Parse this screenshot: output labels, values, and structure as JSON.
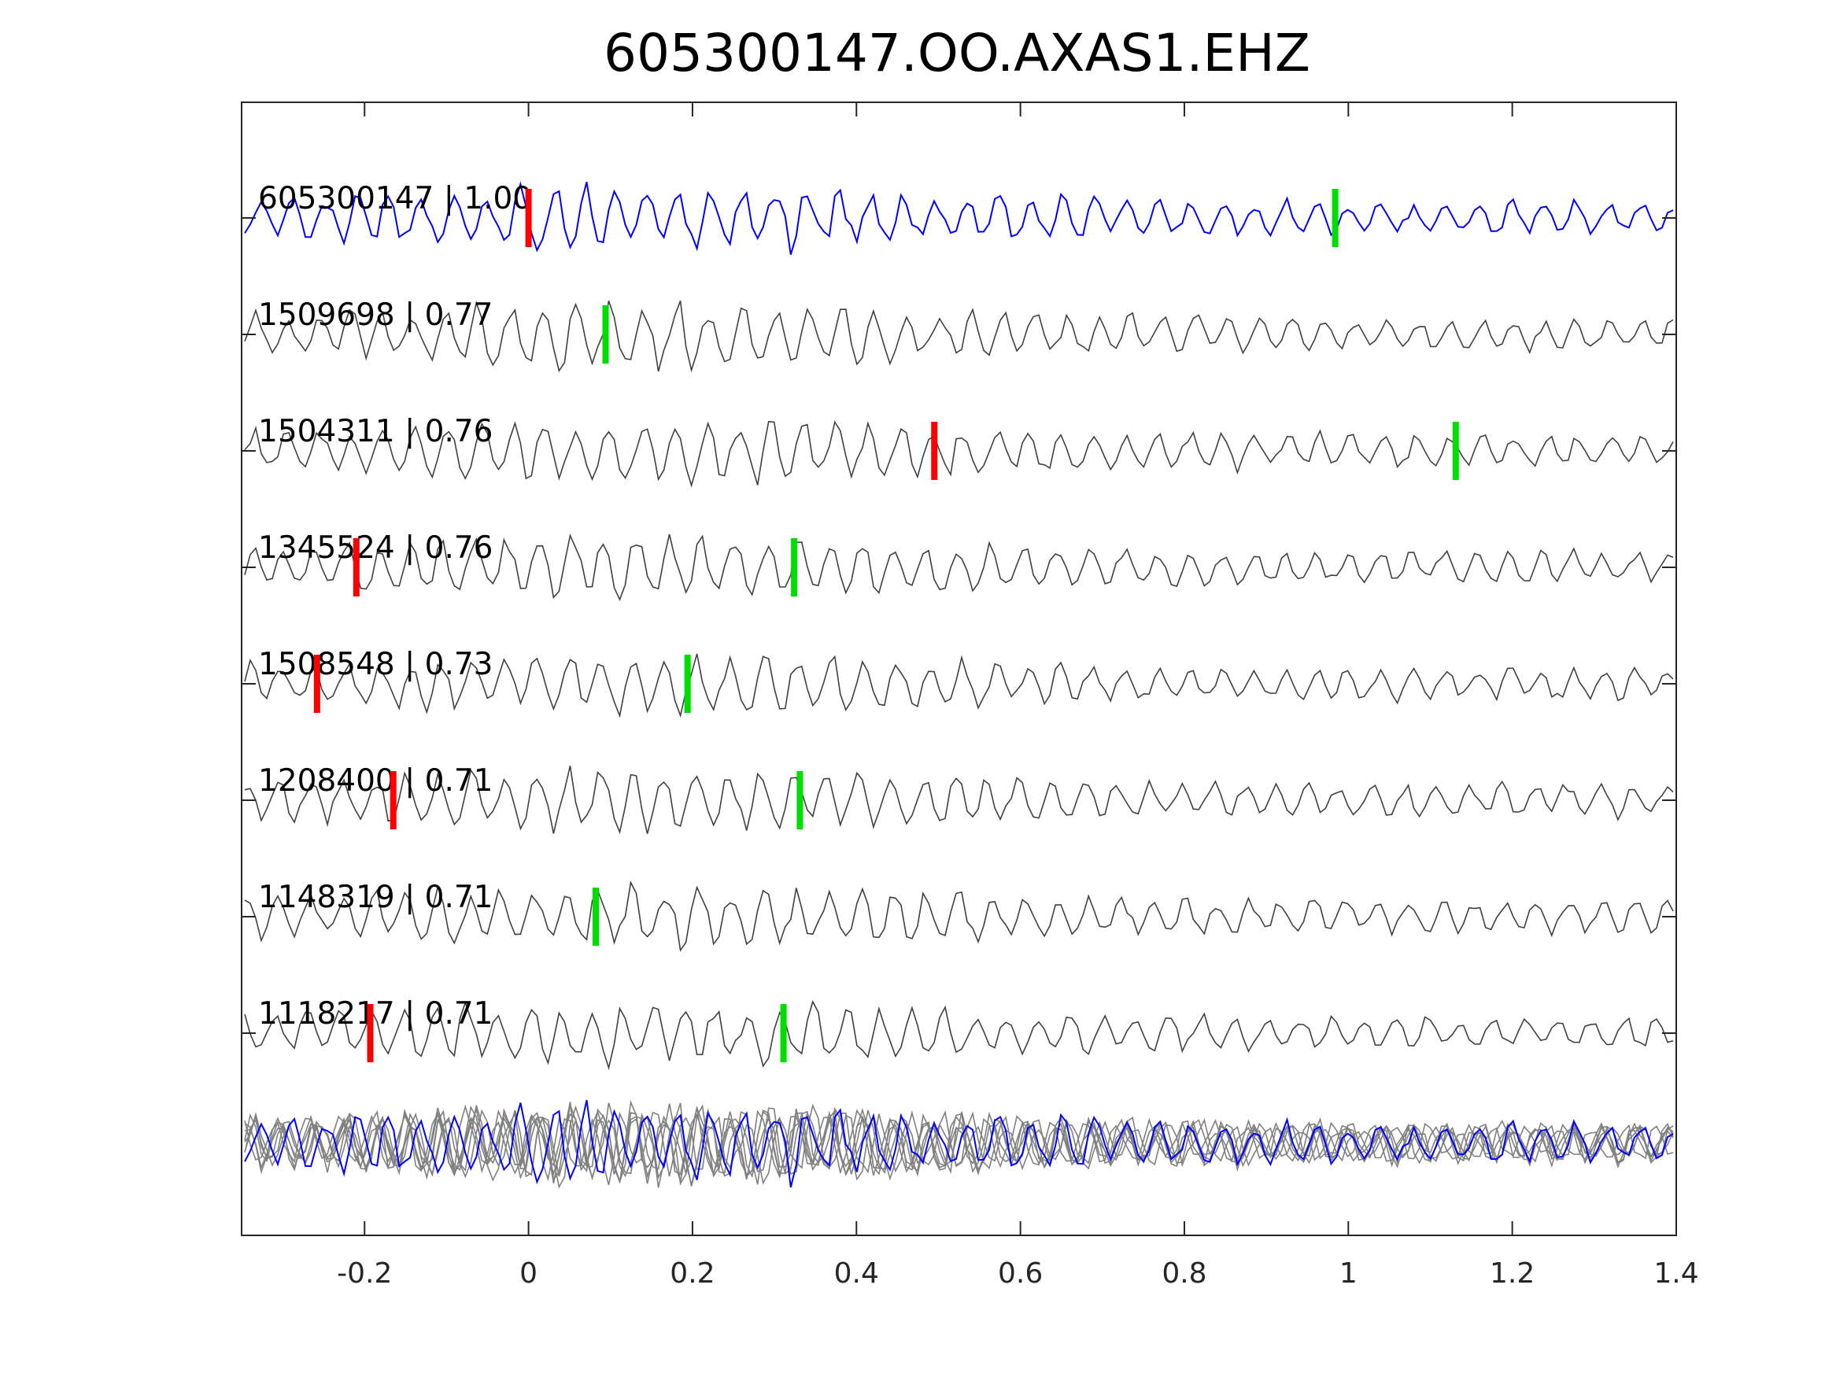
{
  "chart_data": {
    "type": "line",
    "title": "605300147.OO.AXAS1.EHZ",
    "xlabel": "",
    "ylabel": "",
    "xlim": [
      -0.35,
      1.4
    ],
    "xticks": [
      -0.2,
      0,
      0.2,
      0.4,
      0.6,
      0.8,
      1,
      1.2,
      1.4
    ],
    "xtick_labels": [
      "-0.2",
      "0",
      "0.2",
      "0.4",
      "0.6",
      "0.8",
      "1",
      "1.2",
      "1.4"
    ],
    "grid": false,
    "colors": {
      "template": "#0000ff",
      "neighbor": "#404040",
      "stack": "#808080",
      "p_pick": "#ff0000",
      "s_pick": "#00dd00"
    },
    "series": [
      {
        "name": "605300147",
        "label": "605300147 | 1.00",
        "cc": 1.0,
        "color": "template",
        "p_pick": 0.0,
        "s_pick": 0.984
      },
      {
        "name": "1509698",
        "label": "1509698 | 0.77",
        "cc": 0.77,
        "color": "neighbor",
        "p_pick": null,
        "s_pick": 0.094
      },
      {
        "name": "1504311",
        "label": "1504311 | 0.76",
        "cc": 0.76,
        "color": "neighbor",
        "p_pick": 0.495,
        "s_pick": 1.131
      },
      {
        "name": "1345524",
        "label": "1345524 | 0.76",
        "cc": 0.76,
        "color": "neighbor",
        "p_pick": -0.21,
        "s_pick": 0.324
      },
      {
        "name": "1508548",
        "label": "1508548 | 0.73",
        "cc": 0.73,
        "color": "neighbor",
        "p_pick": -0.258,
        "s_pick": 0.194
      },
      {
        "name": "1208400",
        "label": "1208400 | 0.71",
        "cc": 0.71,
        "color": "neighbor",
        "p_pick": -0.165,
        "s_pick": 0.331
      },
      {
        "name": "1148319",
        "label": "1148319 | 0.71",
        "cc": 0.71,
        "color": "neighbor",
        "p_pick": null,
        "s_pick": 0.082
      },
      {
        "name": "1118217",
        "label": "1118217 | 0.71",
        "cc": 0.71,
        "color": "neighbor",
        "p_pick": -0.193,
        "s_pick": 0.311
      }
    ]
  }
}
